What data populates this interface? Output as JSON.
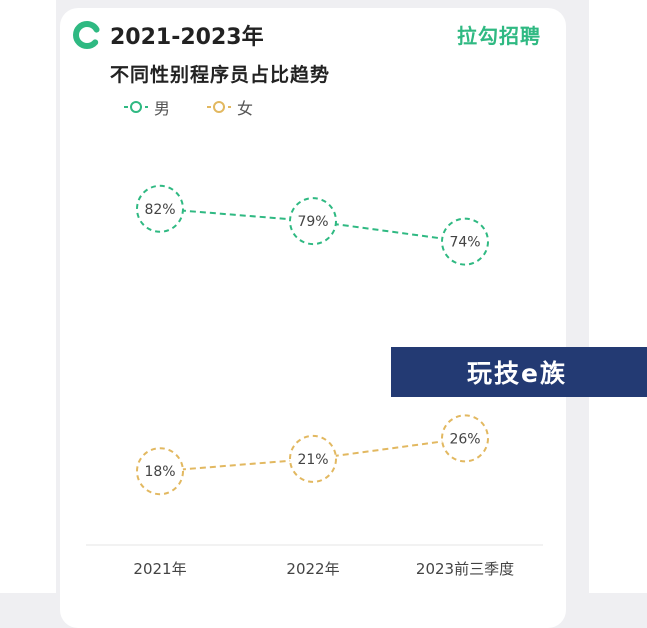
{
  "header": {
    "title_line1": "2021-2023年",
    "title_line2": "不同性别程序员占比趋势",
    "brand": "拉勾招聘"
  },
  "watermark": {
    "text": "玩技e族"
  },
  "colors": {
    "male": "#2fb982",
    "female": "#e2b860",
    "brand": "#2fb982",
    "watermark_bg": "#233a73"
  },
  "chart_data": {
    "type": "line",
    "title": "不同性别程序员占比趋势",
    "categories": [
      "2021年",
      "2022年",
      "2023前三季度"
    ],
    "ylim": [
      0,
      100
    ],
    "grid": false,
    "legend_position": "top-left",
    "series": [
      {
        "name": "男",
        "values": [
          82,
          79,
          74
        ],
        "labels": [
          "82%",
          "79%",
          "74%"
        ],
        "color": "#2fb982"
      },
      {
        "name": "女",
        "values": [
          18,
          21,
          26
        ],
        "labels": [
          "18%",
          "21%",
          "26%"
        ],
        "color": "#e2b860"
      }
    ]
  }
}
